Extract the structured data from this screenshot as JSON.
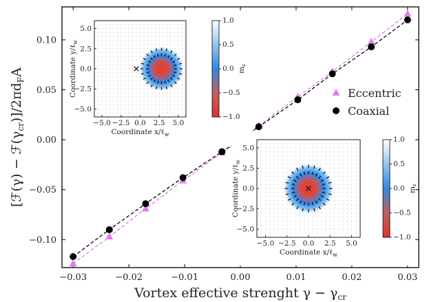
{
  "chart_data": {
    "type": "scatter",
    "xlabel": "Vortex effective strenght γ − γ",
    "xlabel_sub": "cr",
    "ylabel": "[ℱ(γ) − ℱ(γ",
    "ylabel_sub": "cr",
    "ylabel_tail": ")]/2πd",
    "ylabel_F": "F",
    "ylabel_A": "A",
    "xlim": [
      -0.032,
      0.032
    ],
    "ylim": [
      -0.128,
      0.133
    ],
    "xticks": [
      -0.03,
      -0.02,
      -0.01,
      0.0,
      0.01,
      0.02,
      0.03
    ],
    "xtick_labels": [
      "−0.03",
      "−0.02",
      "−0.01",
      "0.00",
      "0.01",
      "0.02",
      "0.03"
    ],
    "yticks": [
      -0.1,
      -0.05,
      0.0,
      0.05,
      0.1
    ],
    "ytick_labels": [
      "−0.10",
      "−0.05",
      "0.00",
      "0.05",
      "0.10"
    ],
    "legend_position": "middle-right",
    "series": [
      {
        "name": "Eccentric",
        "color": "#e27ee6",
        "marker": "triangle",
        "line": "dashed",
        "x": [
          -0.03,
          -0.0235,
          -0.017,
          -0.0103,
          -0.0033,
          0.0,
          0.0033,
          0.0103,
          0.0165,
          0.0235,
          0.03
        ],
        "y": [
          -0.124,
          -0.097,
          -0.069,
          -0.041,
          -0.013,
          0.0,
          0.014,
          0.043,
          0.068,
          0.098,
          0.126
        ]
      },
      {
        "name": "Coaxial",
        "color": "#000000",
        "marker": "circle",
        "line": "dashed",
        "x": [
          -0.03,
          -0.0235,
          -0.017,
          -0.0103,
          -0.0033,
          0.0,
          0.0033,
          0.0103,
          0.0165,
          0.0235,
          0.03
        ],
        "y": [
          -0.117,
          -0.09,
          -0.064,
          -0.038,
          -0.012,
          0.0,
          0.013,
          0.04,
          0.066,
          0.093,
          0.12
        ]
      }
    ],
    "insets": [
      {
        "position": "top-left",
        "type": "heatmap",
        "xlabel": "Coordinate x/ℓ",
        "ylabel": "Coordinate y/ℓ",
        "label_sub": "w",
        "xticks": [
          "−5.0",
          "−2.5",
          "0.0",
          "2.5",
          "5.0"
        ],
        "yticks": [
          "5.0",
          "2.5",
          "0.0",
          "−2.5",
          "−5.0"
        ],
        "center": [
          2.8,
          0.0
        ],
        "marker_x": -0.5,
        "colorbar_label": "m",
        "colorbar_sub": "z",
        "colorbar_ticks": [
          "1.0",
          "0.5",
          "0.0",
          "−0.5",
          "−1.0"
        ]
      },
      {
        "position": "bottom-right",
        "type": "heatmap",
        "xlabel": "Coordinate x/ℓ",
        "ylabel": "Coordinate y/ℓ",
        "label_sub": "w",
        "xticks": [
          "−5.0",
          "−2.5",
          "0.0",
          "2.5",
          "5.0"
        ],
        "yticks": [
          "5.0",
          "2.5",
          "0.0",
          "−2.5",
          "−5.0"
        ],
        "center": [
          0.0,
          0.0
        ],
        "marker_x": 0.0,
        "colorbar_label": "m",
        "colorbar_sub": "z",
        "colorbar_ticks": [
          "1.0",
          "0.5",
          "0.0",
          "−0.5",
          "−1.0"
        ]
      }
    ]
  }
}
